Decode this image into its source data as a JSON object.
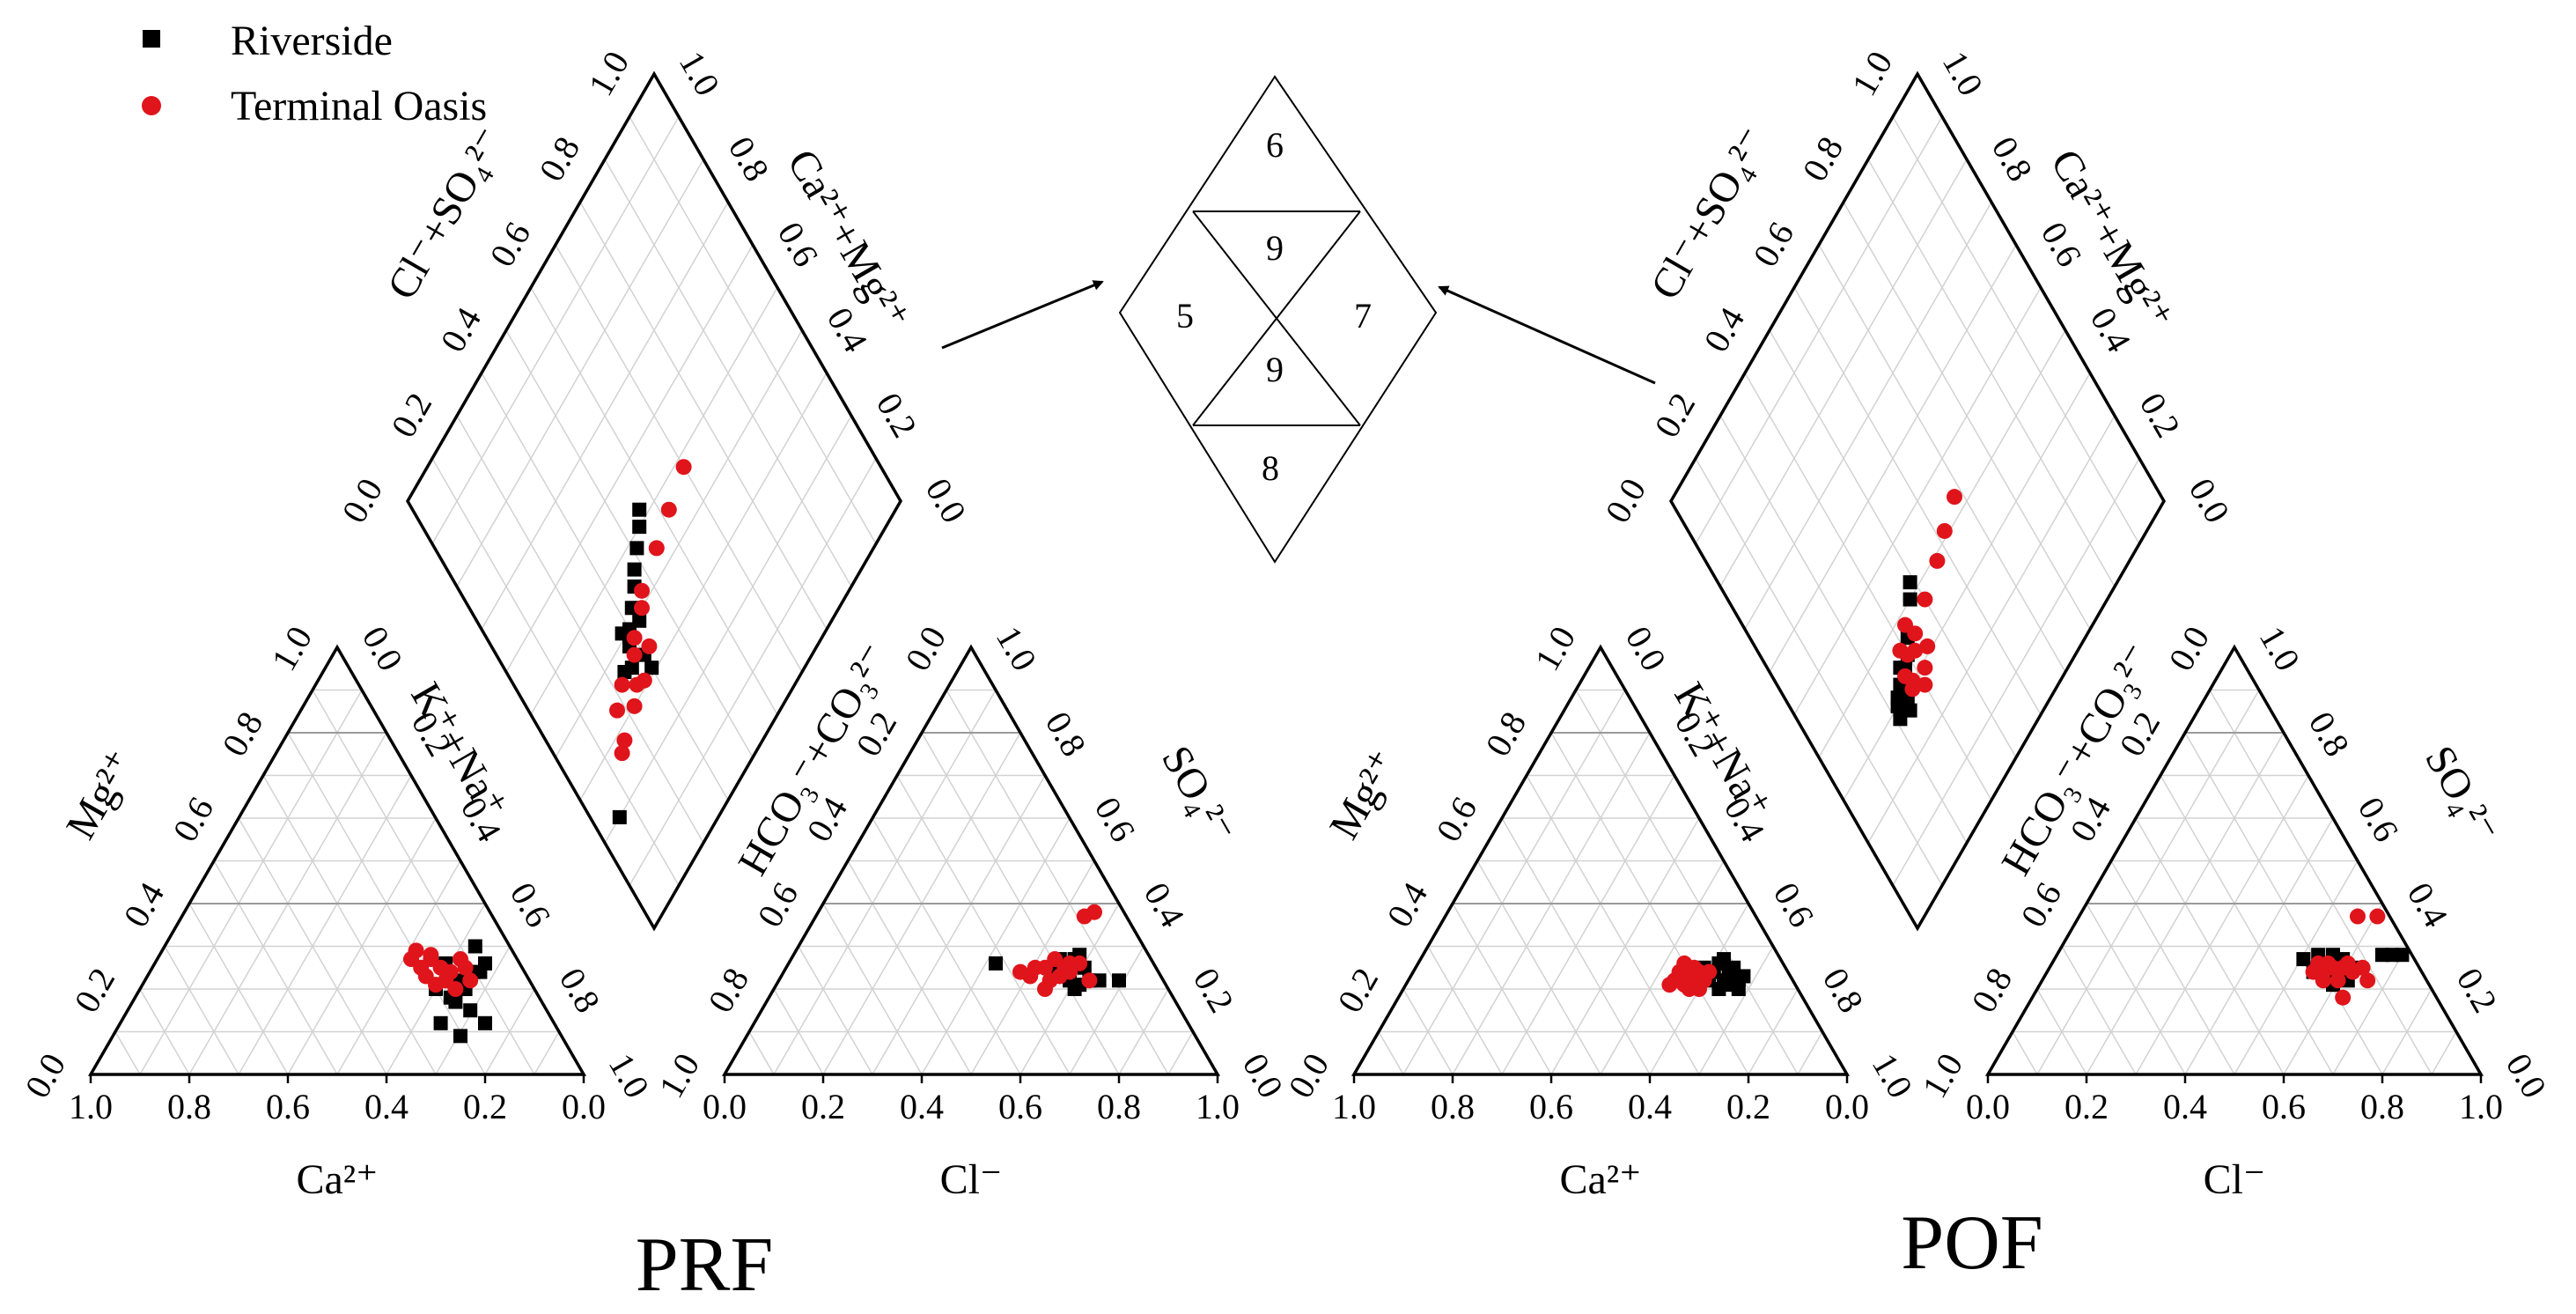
{
  "legend": {
    "items": [
      {
        "label": "Riverside",
        "color": "#000000",
        "marker": "square"
      },
      {
        "label": "Terminal Oasis",
        "color": "#e0141b",
        "marker": "circle"
      }
    ],
    "placement": "top-left"
  },
  "zone_diagram": {
    "zones": [
      "6",
      "9",
      "5",
      "7",
      "9",
      "8"
    ]
  },
  "chart_data": [
    {
      "type": "piper",
      "title": "PRF",
      "cation_triangle": {
        "xlabel": "Ca²⁺",
        "left_label": "Mg²⁺",
        "right_label": "K⁺+Na⁺",
        "ticks": [
          "0.0",
          "0.2",
          "0.4",
          "0.6",
          "0.8",
          "1.0"
        ],
        "series": [
          {
            "name": "Riverside",
            "points": [
              [
                0.22,
                0.3
              ],
              [
                0.2,
                0.26
              ],
              [
                0.23,
                0.24
              ],
              [
                0.27,
                0.22
              ],
              [
                0.24,
                0.2
              ],
              [
                0.27,
                0.18
              ],
              [
                0.3,
                0.2
              ],
              [
                0.25,
                0.22
              ],
              [
                0.21,
                0.24
              ],
              [
                0.26,
                0.17
              ],
              [
                0.29,
                0.12
              ],
              [
                0.25,
                0.09
              ],
              [
                0.2,
                0.12
              ],
              [
                0.23,
                0.15
              ],
              [
                0.28,
                0.26
              ]
            ]
          },
          {
            "name": "Terminal Oasis",
            "points": [
              [
                0.34,
                0.29
              ],
              [
                0.31,
                0.27
              ],
              [
                0.29,
                0.25
              ],
              [
                0.32,
                0.23
              ],
              [
                0.3,
                0.21
              ],
              [
                0.27,
                0.24
              ],
              [
                0.25,
                0.27
              ],
              [
                0.33,
                0.25
              ],
              [
                0.28,
                0.22
              ],
              [
                0.26,
                0.2
              ],
              [
                0.24,
                0.25
              ],
              [
                0.31,
                0.28
              ],
              [
                0.23,
                0.22
              ],
              [
                0.35,
                0.27
              ]
            ]
          }
        ]
      },
      "anion_triangle": {
        "xlabel": "Cl⁻",
        "left_label": "HCO₃⁻+CO₃²⁻",
        "right_label": "SO₄²⁻",
        "ticks": [
          "0.0",
          "0.2",
          "0.4",
          "0.6",
          "0.8",
          "1.0"
        ],
        "series": [
          {
            "name": "Riverside",
            "points": [
              [
                0.55,
                0.26
              ],
              [
                0.7,
                0.24
              ],
              [
                0.71,
                0.27
              ],
              [
                0.74,
                0.22
              ],
              [
                0.72,
                0.28
              ],
              [
                0.68,
                0.24
              ],
              [
                0.76,
                0.22
              ],
              [
                0.66,
                0.25
              ],
              [
                0.72,
                0.21
              ],
              [
                0.7,
                0.22
              ],
              [
                0.69,
                0.26
              ],
              [
                0.73,
                0.25
              ],
              [
                0.8,
                0.22
              ],
              [
                0.68,
                0.27
              ],
              [
                0.71,
                0.2
              ]
            ]
          },
          {
            "name": "Terminal Oasis",
            "points": [
              [
                0.6,
                0.24
              ],
              [
                0.62,
                0.23
              ],
              [
                0.63,
                0.25
              ],
              [
                0.65,
                0.25
              ],
              [
                0.67,
                0.27
              ],
              [
                0.68,
                0.23
              ],
              [
                0.66,
                0.22
              ],
              [
                0.7,
                0.24
              ],
              [
                0.65,
                0.2
              ],
              [
                0.74,
                0.22
              ],
              [
                0.72,
                0.26
              ],
              [
                0.73,
                0.37
              ],
              [
                0.75,
                0.38
              ],
              [
                0.7,
                0.26
              ],
              [
                0.69,
                0.25
              ]
            ]
          }
        ]
      },
      "diamond": {
        "upper_left_label": "Cl⁻+SO₄²⁻",
        "upper_right_label": "Ca²⁺+Mg²⁺",
        "ticks": [
          "0.0",
          "0.2",
          "0.4",
          "0.6",
          "0.8",
          "1.0"
        ],
        "series": [
          {
            "name": "Riverside",
            "points": [
              [
                0.31,
                0.3
              ],
              [
                0.34,
                0.3
              ],
              [
                0.39,
                0.33
              ],
              [
                0.42,
                0.33
              ],
              [
                0.4,
                0.3
              ],
              [
                0.44,
                0.36
              ],
              [
                0.46,
                0.38
              ],
              [
                0.48,
                0.41
              ],
              [
                0.5,
                0.44
              ],
              [
                0.52,
                0.46
              ],
              [
                0.2,
                0.06
              ],
              [
                0.36,
                0.24
              ],
              [
                0.38,
                0.28
              ],
              [
                0.35,
                0.26
              ],
              [
                0.41,
                0.28
              ]
            ]
          },
          {
            "name": "Terminal Oasis",
            "points": [
              [
                0.3,
                0.22
              ],
              [
                0.32,
                0.25
              ],
              [
                0.34,
                0.32
              ],
              [
                0.36,
                0.28
              ],
              [
                0.38,
                0.3
              ],
              [
                0.4,
                0.35
              ],
              [
                0.42,
                0.37
              ],
              [
                0.44,
                0.45
              ],
              [
                0.46,
                0.52
              ],
              [
                0.35,
                0.22
              ],
              [
                0.31,
                0.27
              ],
              [
                0.28,
                0.16
              ],
              [
                0.27,
                0.14
              ],
              [
                0.33,
                0.18
              ],
              [
                0.48,
                0.6
              ]
            ]
          }
        ]
      }
    },
    {
      "type": "piper",
      "title": "POF",
      "cation_triangle": {
        "xlabel": "Ca²⁺",
        "left_label": "Mg²⁺",
        "right_label": "K⁺+Na⁺",
        "ticks": [
          "0.0",
          "0.2",
          "0.4",
          "0.6",
          "0.8",
          "1.0"
        ],
        "series": [
          {
            "name": "Riverside",
            "points": [
              [
                0.22,
                0.22
              ],
              [
                0.24,
                0.24
              ],
              [
                0.26,
                0.26
              ],
              [
                0.23,
                0.25
              ],
              [
                0.21,
                0.23
              ],
              [
                0.25,
                0.22
              ],
              [
                0.27,
                0.24
              ],
              [
                0.24,
                0.21
              ],
              [
                0.22,
                0.2
              ],
              [
                0.26,
                0.2
              ],
              [
                0.28,
                0.22
              ],
              [
                0.29,
                0.25
              ],
              [
                0.23,
                0.22
              ],
              [
                0.25,
                0.27
              ]
            ]
          },
          {
            "name": "Terminal Oasis",
            "points": [
              [
                0.31,
                0.22
              ],
              [
                0.32,
                0.23
              ],
              [
                0.33,
                0.21
              ],
              [
                0.34,
                0.24
              ],
              [
                0.35,
                0.22
              ],
              [
                0.3,
                0.24
              ],
              [
                0.29,
                0.22
              ],
              [
                0.31,
                0.25
              ],
              [
                0.33,
                0.26
              ],
              [
                0.34,
                0.22
              ],
              [
                0.36,
                0.21
              ],
              [
                0.3,
                0.2
              ],
              [
                0.32,
                0.2
              ],
              [
                0.28,
                0.24
              ]
            ]
          }
        ]
      },
      "anion_triangle": {
        "xlabel": "Cl⁻",
        "left_label": "HCO₃⁻+CO₃²⁻",
        "right_label": "SO₄²⁻",
        "ticks": [
          "0.0",
          "0.2",
          "0.4",
          "0.6",
          "0.8",
          "1.0"
        ],
        "series": [
          {
            "name": "Riverside",
            "points": [
              [
                0.64,
                0.27
              ],
              [
                0.67,
                0.28
              ],
              [
                0.7,
                0.28
              ],
              [
                0.72,
                0.27
              ],
              [
                0.68,
                0.25
              ],
              [
                0.71,
                0.24
              ],
              [
                0.73,
                0.22
              ],
              [
                0.66,
                0.24
              ],
              [
                0.69,
                0.23
              ],
              [
                0.8,
                0.28
              ],
              [
                0.82,
                0.28
              ],
              [
                0.84,
                0.28
              ],
              [
                0.7,
                0.21
              ],
              [
                0.75,
                0.25
              ]
            ]
          },
          {
            "name": "Terminal Oasis",
            "points": [
              [
                0.66,
                0.24
              ],
              [
                0.67,
                0.26
              ],
              [
                0.68,
                0.24
              ],
              [
                0.69,
                0.26
              ],
              [
                0.7,
                0.25
              ],
              [
                0.71,
                0.22
              ],
              [
                0.72,
                0.25
              ],
              [
                0.73,
                0.26
              ],
              [
                0.74,
                0.24
              ],
              [
                0.76,
                0.25
              ],
              [
                0.75,
                0.37
              ],
              [
                0.79,
                0.37
              ],
              [
                0.72,
                0.18
              ],
              [
                0.77,
                0.22
              ],
              [
                0.68,
                0.22
              ]
            ]
          }
        ]
      },
      "diamond": {
        "upper_left_label": "Cl⁻+SO₄²⁻",
        "upper_right_label": "Ca²⁺+Mg²⁺",
        "ticks": [
          "0.0",
          "0.2",
          "0.4",
          "0.6",
          "0.8",
          "1.0"
        ],
        "series": [
          {
            "name": "Riverside",
            "points": [
              [
                0.27,
                0.24
              ],
              [
                0.29,
                0.25
              ],
              [
                0.31,
                0.27
              ],
              [
                0.3,
                0.24
              ],
              [
                0.33,
                0.28
              ],
              [
                0.32,
                0.25
              ],
              [
                0.3,
                0.22
              ],
              [
                0.34,
                0.27
              ],
              [
                0.36,
                0.32
              ],
              [
                0.4,
                0.37
              ],
              [
                0.42,
                0.39
              ],
              [
                0.28,
                0.21
              ],
              [
                0.31,
                0.23
              ],
              [
                0.34,
                0.3
              ]
            ]
          },
          {
            "name": "Terminal Oasis",
            "points": [
              [
                0.27,
                0.3
              ],
              [
                0.29,
                0.32
              ],
              [
                0.31,
                0.35
              ],
              [
                0.33,
                0.32
              ],
              [
                0.35,
                0.34
              ],
              [
                0.37,
                0.4
              ],
              [
                0.39,
                0.47
              ],
              [
                0.41,
                0.52
              ],
              [
                0.43,
                0.58
              ],
              [
                0.3,
                0.28
              ],
              [
                0.32,
                0.27
              ],
              [
                0.34,
                0.3
              ],
              [
                0.29,
                0.27
              ],
              [
                0.36,
                0.29
              ],
              [
                0.38,
                0.33
              ]
            ]
          }
        ]
      }
    }
  ]
}
